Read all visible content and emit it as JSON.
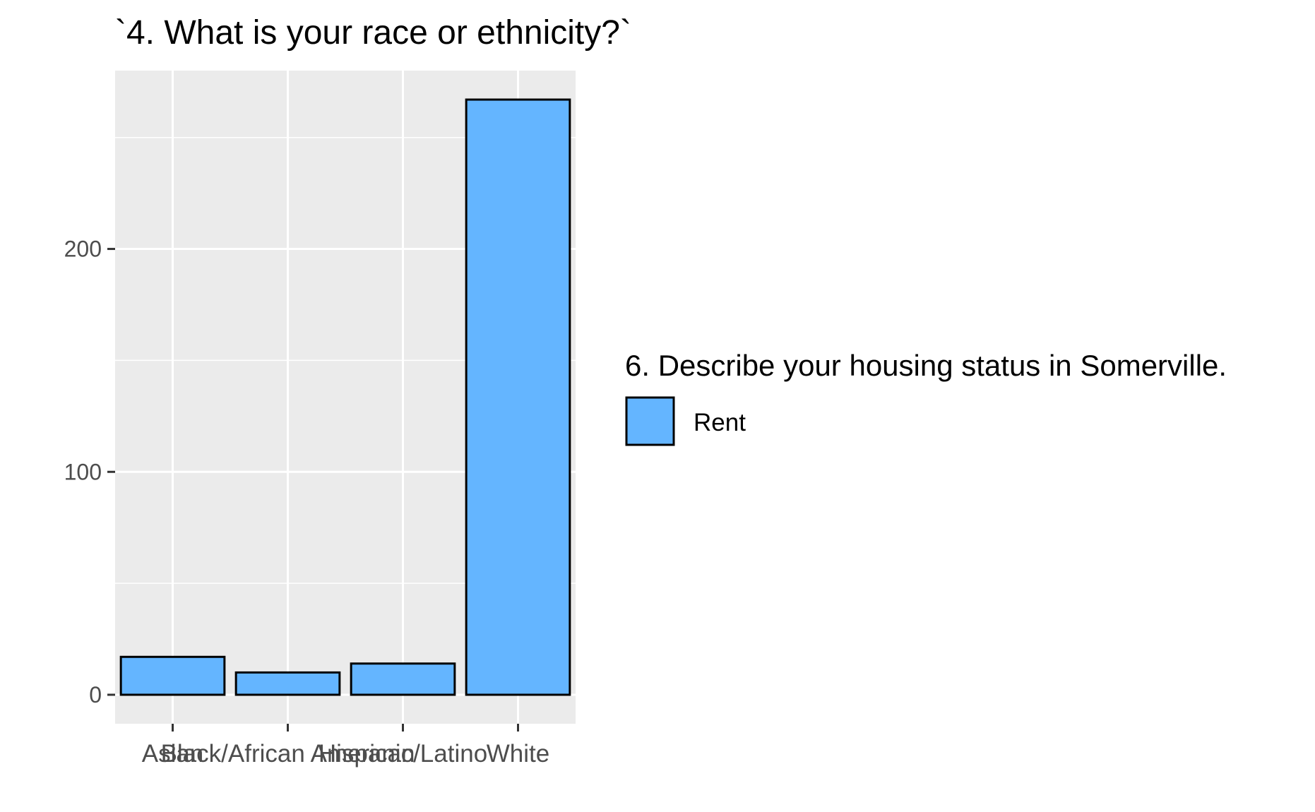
{
  "chart_data": {
    "type": "bar",
    "title": "`4. What is your race or ethnicity?`",
    "xlabel": "",
    "ylabel": "",
    "categories": [
      "Asian",
      "Black/African American",
      "Hispanic/Latino",
      "White"
    ],
    "series": [
      {
        "name": "Rent",
        "values": [
          17,
          10,
          14,
          267
        ]
      }
    ],
    "ylim": [
      -13,
      280
    ],
    "yticks": [
      0,
      100,
      200
    ],
    "ytick_labels": [
      "0",
      "100",
      "200"
    ],
    "grid": true,
    "legend": {
      "title": "6. Describe your housing status in Somerville.",
      "position": "right",
      "entries": [
        {
          "label": "Rent",
          "color": "#64b5ff"
        }
      ]
    },
    "colors": {
      "bar_fill": "#64b5ff",
      "bar_stroke": "#000000",
      "panel_background": "#ebebeb",
      "grid": "#ffffff",
      "tick_text": "#4d4d4d"
    }
  }
}
